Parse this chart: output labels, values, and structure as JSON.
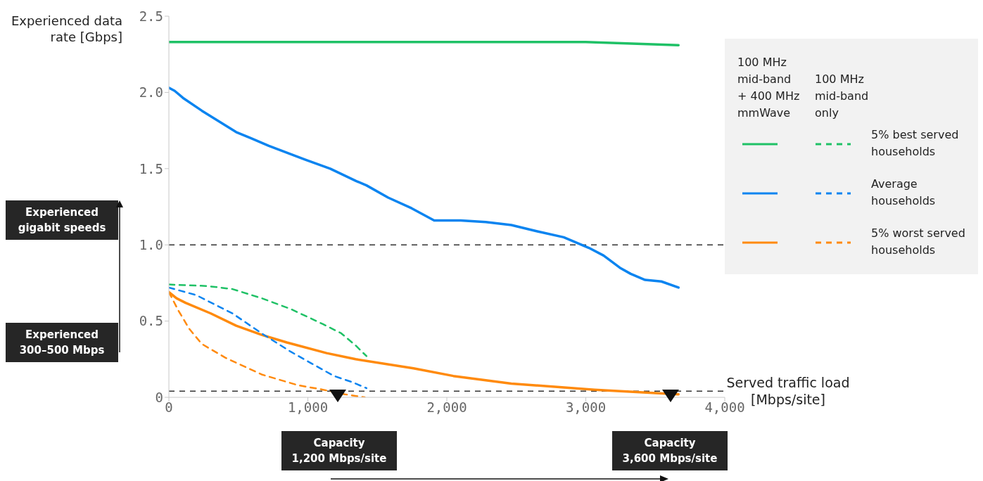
{
  "chart_data": {
    "type": "line",
    "xlabel": "Served traffic load [Mbps/site]",
    "ylabel": "Experienced data rate [Gbps]",
    "xlim": [
      0,
      4000
    ],
    "xticks": [
      0,
      {
        "value": 1000,
        "label": "1,000"
      },
      {
        "value": 2000,
        "label": "2,000"
      },
      {
        "value": 3000,
        "label": "3,000"
      },
      {
        "value": 4000,
        "label": "4,000"
      }
    ],
    "ylim": [
      0,
      2.5
    ],
    "yticks": [
      0,
      0.5,
      {
        "value": 1,
        "label": "1.0"
      },
      1.5,
      {
        "value": 2,
        "label": "2.0"
      },
      2.5
    ],
    "grid": false,
    "legend": "right",
    "marker": "none",
    "series": [
      {
        "name": "5% best served households",
        "color": "#1fc166",
        "line_style": "solid",
        "x": [
          0,
          500,
          1000,
          1500,
          2000,
          2500,
          3000,
          3667
        ],
        "values": [
          2.33,
          2.33,
          2.33,
          2.33,
          2.33,
          2.33,
          2.33,
          2.31
        ]
      },
      {
        "name": "Average households",
        "color": "#0b84f0",
        "line_style": "solid",
        "x": [
          0,
          42,
          107,
          237,
          484,
          589,
          719,
          979,
          1161,
          1344,
          1422,
          1578,
          1747,
          1909,
          2099,
          2281,
          2464,
          2646,
          2841,
          3023,
          3128,
          3245,
          3323,
          3427,
          3544,
          3667
        ],
        "values": [
          2.03,
          2.01,
          1.96,
          1.88,
          1.74,
          1.7,
          1.65,
          1.56,
          1.5,
          1.42,
          1.39,
          1.31,
          1.24,
          1.16,
          1.16,
          1.15,
          1.13,
          1.09,
          1.05,
          0.98,
          0.93,
          0.85,
          0.81,
          0.77,
          0.76,
          0.72
        ]
      },
      {
        "name": "5% worst served households",
        "color": "#ff8a0d",
        "line_style": "solid",
        "x": [
          0,
          55,
          120,
          302,
          484,
          667,
          849,
          1135,
          1344,
          1760,
          2047,
          2464,
          3063,
          3667
        ],
        "values": [
          0.69,
          0.65,
          0.62,
          0.55,
          0.47,
          0.41,
          0.36,
          0.29,
          0.25,
          0.19,
          0.14,
          0.09,
          0.05,
          0.02
        ]
      },
      {
        "color": "#1fc166",
        "line_style": "dashed",
        "x": [
          0,
          276,
          458,
          667,
          875,
          1109,
          1240,
          1344,
          1422
        ],
        "values": [
          0.74,
          0.73,
          0.71,
          0.65,
          0.58,
          0.48,
          0.42,
          0.34,
          0.27
        ]
      },
      {
        "color": "#0b84f0",
        "line_style": "dashed",
        "x": [
          0,
          198,
          458,
          667,
          875,
          1031,
          1188,
          1318,
          1422
        ],
        "values": [
          0.72,
          0.67,
          0.55,
          0.42,
          0.3,
          0.22,
          0.14,
          0.1,
          0.06
        ]
      },
      {
        "color": "#ff8a0d",
        "line_style": "dashed",
        "x": [
          0,
          68,
          146,
          237,
          406,
          667,
          927,
          1109,
          1266,
          1409
        ],
        "values": [
          0.69,
          0.57,
          0.45,
          0.35,
          0.26,
          0.15,
          0.08,
          0.05,
          0.02,
          0
        ]
      }
    ],
    "ref_lines": [
      {
        "axis": "y",
        "value": 1,
        "color": "#333333",
        "line_style": "dashed"
      },
      {
        "axis": "y",
        "value": 0.04,
        "color": "#333333",
        "line_style": "dashed"
      }
    ],
    "annotations": [
      "100 MHz\nmid-band\n+ 400 MHz\nmmWave",
      "100 MHz\nmid-band\nonly",
      "Experienced\ngigabit speeds",
      "Experienced\n300–500 Mbps",
      "Capacity\n1,200 Mbps/site",
      "Capacity\n3,600 Mbps/site"
    ]
  }
}
